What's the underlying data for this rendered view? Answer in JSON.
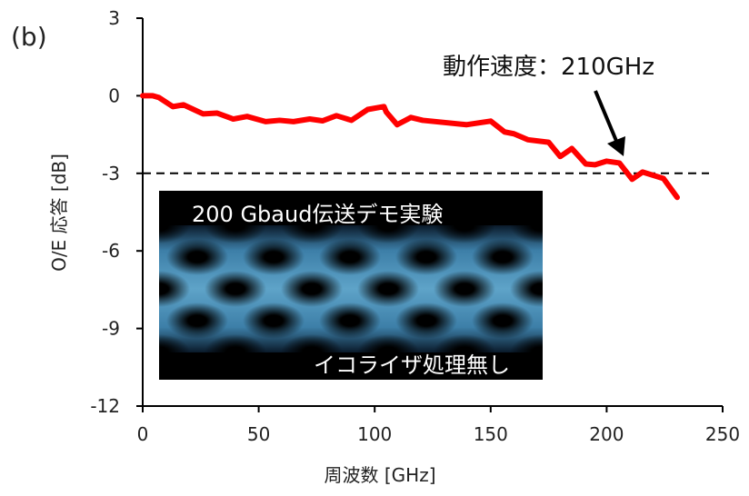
{
  "chart_data": {
    "type": "line",
    "panel_label": "(b)",
    "xlabel": "周波数 [GHz]",
    "ylabel": "O/E 応答 [dB]",
    "xlim": [
      0,
      250
    ],
    "ylim": [
      -12,
      3
    ],
    "xticks": [
      0,
      50,
      100,
      150,
      200,
      250
    ],
    "yticks": [
      3,
      0,
      -3,
      -6,
      -9,
      -12
    ],
    "grid": false,
    "reference_line": {
      "y": -3,
      "style": "dashed",
      "color": "#000000"
    },
    "series": [
      {
        "name": "O/E response",
        "color": "#ff0000",
        "x": [
          0,
          4.3,
          7,
          13,
          17.6,
          26,
          32,
          39,
          45,
          53,
          59,
          65,
          72,
          77.5,
          83.5,
          90,
          97,
          104,
          105,
          109.7,
          115.6,
          120.7,
          139.5,
          150,
          156,
          160,
          166,
          175,
          180,
          185,
          191,
          195,
          200,
          205.5,
          211,
          215.5,
          224.5,
          230.4
        ],
        "y": [
          0,
          0,
          -0.07,
          -0.42,
          -0.35,
          -0.7,
          -0.67,
          -0.9,
          -0.8,
          -1.0,
          -0.95,
          -1.0,
          -0.9,
          -0.97,
          -0.77,
          -0.95,
          -0.53,
          -0.42,
          -0.63,
          -1.12,
          -0.84,
          -0.95,
          -1.12,
          -0.98,
          -1.4,
          -1.47,
          -1.7,
          -1.8,
          -2.35,
          -2.04,
          -2.64,
          -2.67,
          -2.53,
          -2.6,
          -3.23,
          -2.95,
          -3.2,
          -3.93
        ]
      }
    ],
    "annotation": {
      "text": "動作速度：210GHz",
      "points_to_x": 210
    },
    "inset": {
      "title": "200 Gbaud伝送デモ実験",
      "caption": "イコライザ処理無し"
    }
  }
}
